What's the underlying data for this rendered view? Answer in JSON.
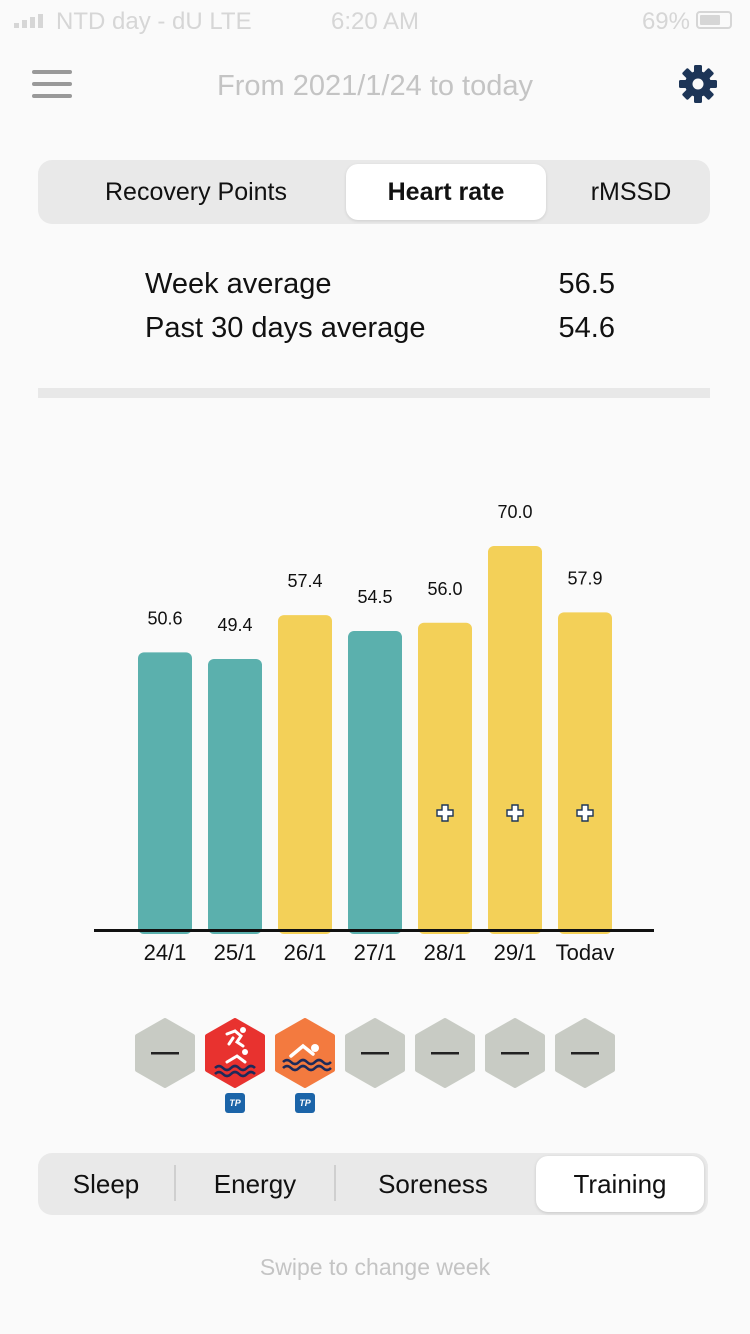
{
  "status_bar": {
    "carrier": "NTD day - dU  LTE",
    "time": "6:20 AM",
    "battery": "69%"
  },
  "header": {
    "title": "From 2021/1/24 to today",
    "menu_icon": "hamburger-menu-icon",
    "settings_icon": "gear-icon"
  },
  "metric_tabs": [
    {
      "label": "Recovery Points",
      "active": false
    },
    {
      "label": "Heart rate",
      "active": true
    },
    {
      "label": "rMSSD",
      "active": false
    }
  ],
  "stats": {
    "week_label": "Week average",
    "week_value": "56.5",
    "month_label": "Past 30 days average",
    "month_value": "54.6"
  },
  "colors": {
    "teal": "#5bb0ad",
    "yellow": "#f3d058",
    "red_icon": "#e8322f",
    "orange_icon": "#f37a3f",
    "empty_icon": "#c8cbc4"
  },
  "chart_data": {
    "type": "bar",
    "categories": [
      "24/1",
      "25/1",
      "26/1",
      "27/1",
      "28/1",
      "29/1",
      "Todav"
    ],
    "values": [
      50.6,
      49.4,
      57.4,
      54.5,
      56.0,
      70.0,
      57.9
    ],
    "value_labels": [
      "50.6",
      "49.4",
      "57.4",
      "54.5",
      "56.0",
      "70.0",
      "57.9"
    ],
    "bar_colors": [
      "teal",
      "teal",
      "yellow",
      "teal",
      "yellow",
      "yellow",
      "yellow"
    ],
    "plus_markers": [
      false,
      false,
      false,
      false,
      true,
      true,
      true
    ],
    "ylim": [
      0,
      70
    ],
    "grid": false,
    "title": "",
    "xlabel": "",
    "ylabel": ""
  },
  "day_icons": [
    {
      "type": "empty",
      "glyph": "—",
      "badge": false
    },
    {
      "type": "triathlon",
      "icon": "triathlon-icon",
      "badge": true
    },
    {
      "type": "swim",
      "icon": "swim-icon",
      "badge": true
    },
    {
      "type": "empty",
      "glyph": "—",
      "badge": false
    },
    {
      "type": "empty",
      "glyph": "—",
      "badge": false
    },
    {
      "type": "empty",
      "glyph": "—",
      "badge": false
    },
    {
      "type": "empty",
      "glyph": "—",
      "badge": false
    }
  ],
  "badge_text": "TP",
  "bottom_tabs": [
    {
      "label": "Sleep",
      "active": false
    },
    {
      "label": "Energy",
      "active": false
    },
    {
      "label": "Soreness",
      "active": false
    },
    {
      "label": "Training",
      "active": true
    }
  ],
  "hint": "Swipe to change week"
}
